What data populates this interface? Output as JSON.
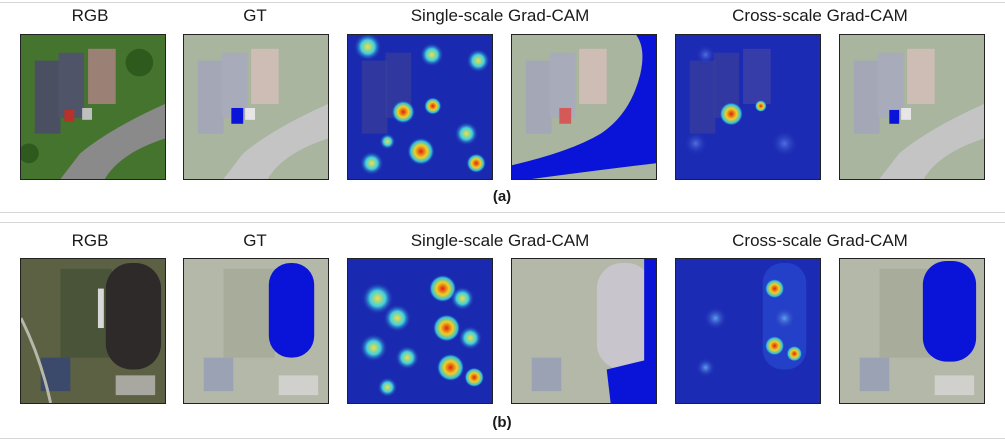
{
  "figure": {
    "rows": [
      {
        "id": "a",
        "panel_label": "(a)",
        "column_titles": {
          "rgb": "RGB",
          "gt": "GT",
          "single": "Single-scale Grad-CAM",
          "cross": "Cross-scale Grad-CAM"
        }
      },
      {
        "id": "b",
        "panel_label": "(b)",
        "column_titles": {
          "rgb": "RGB",
          "gt": "GT",
          "single": "Single-scale Grad-CAM",
          "cross": "Cross-scale Grad-CAM"
        }
      }
    ],
    "colors": {
      "mask_blue": "#0a14d8",
      "heat_low": "#1a2ab0",
      "heat_high": "#e02010"
    }
  }
}
